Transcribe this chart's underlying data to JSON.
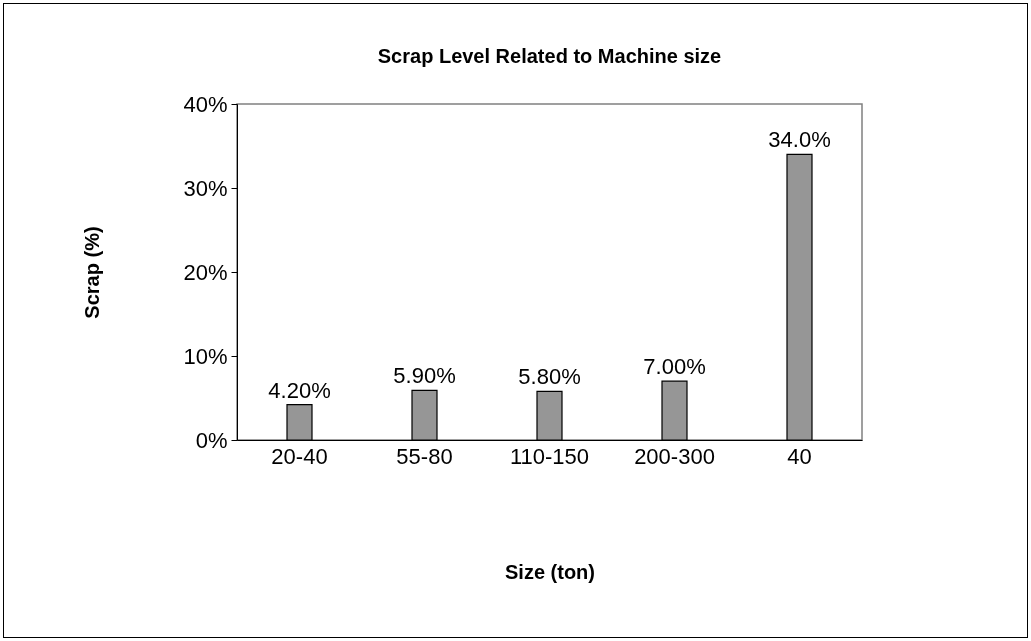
{
  "chart_data": {
    "type": "bar",
    "title": "Scrap Level Related to Machine size",
    "xlabel": "Size (ton)",
    "ylabel": "Scrap (%)",
    "categories": [
      "20-40",
      "55-80",
      "110-150",
      "200-300",
      "40"
    ],
    "values": [
      4.2,
      5.9,
      5.8,
      7.0,
      34.0
    ],
    "value_labels": [
      "4.20%",
      "5.90%",
      "5.80%",
      "7.00%",
      "34.0%"
    ],
    "color": "#969696",
    "ylim": [
      0,
      40
    ],
    "yticks": [
      {
        "value": 0,
        "label": "0%"
      },
      {
        "value": 10,
        "label": "10%"
      },
      {
        "value": 20,
        "label": "20%"
      },
      {
        "value": 30,
        "label": "30%"
      },
      {
        "value": 40,
        "label": "40%"
      }
    ],
    "grid": false
  }
}
